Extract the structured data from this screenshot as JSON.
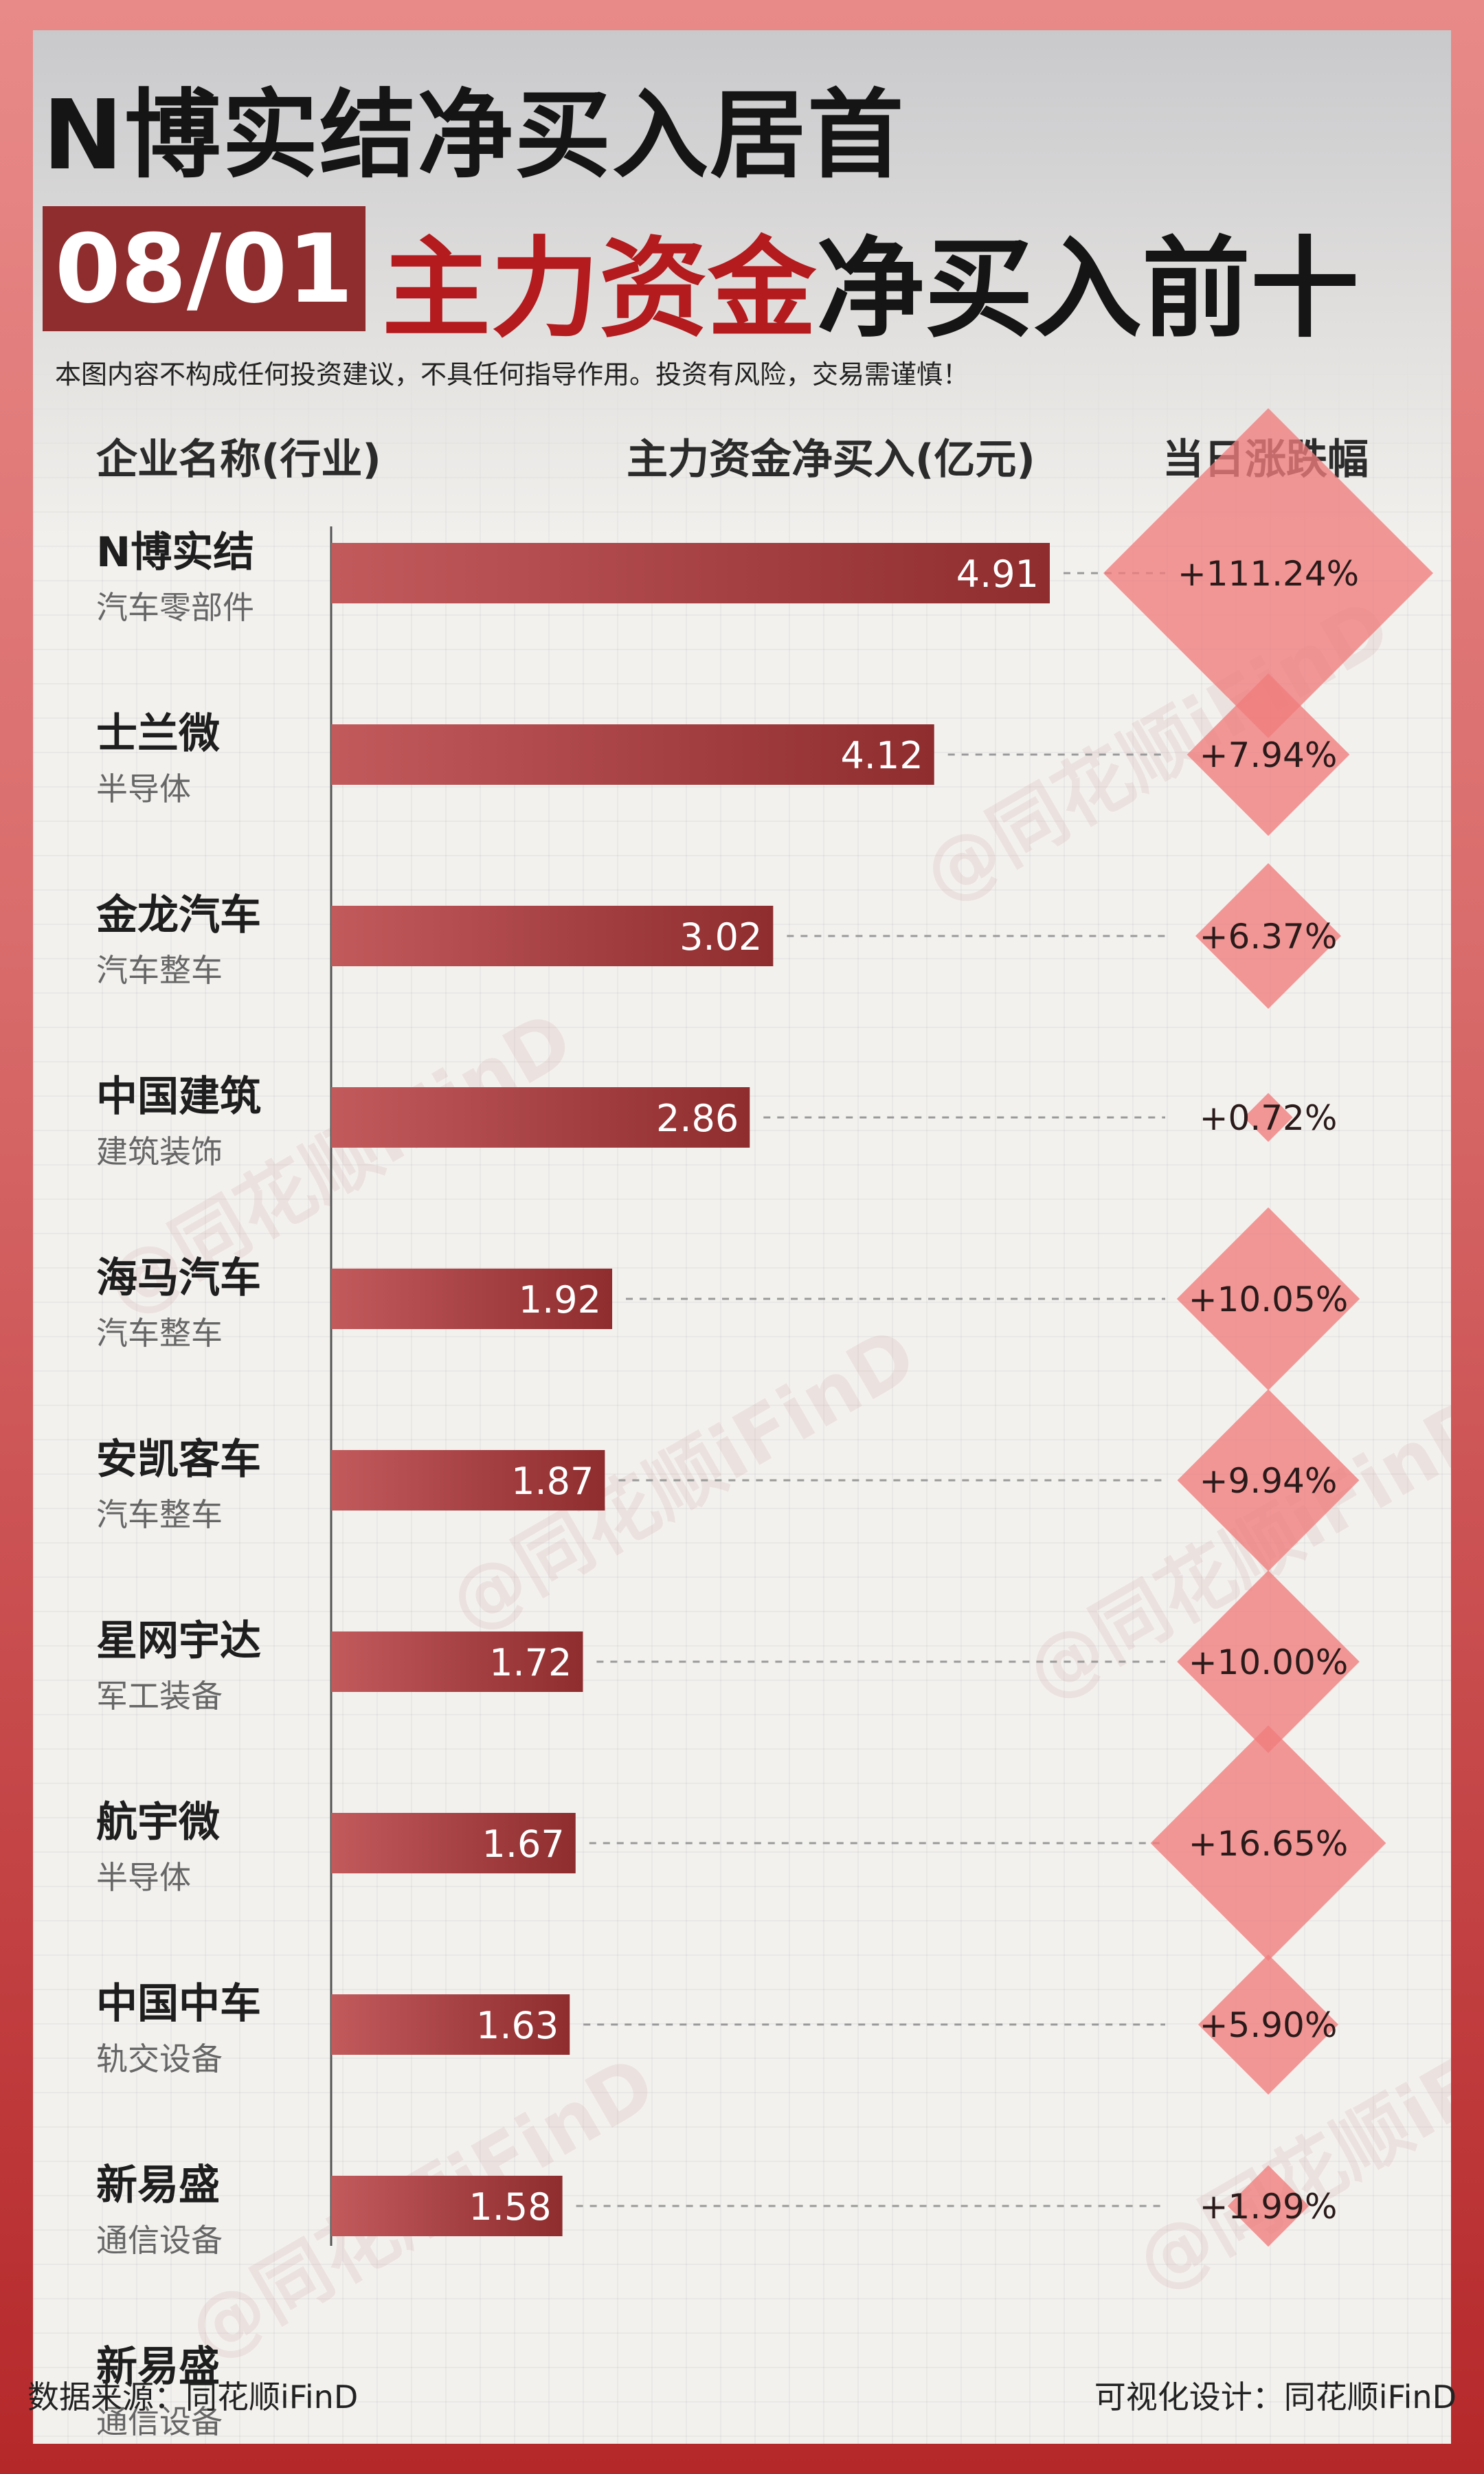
{
  "header": {
    "headline": "N博实结净买入居首",
    "date": "08/01",
    "title_red": "主力资金",
    "title_dark": "净买入前十",
    "disclaimer": "本图内容不构成任何投资建议，不具任何指导作用。投资有风险，交易需谨慎！"
  },
  "columns": {
    "company": "企业名称(行业)",
    "net_buy": "主力资金净买入(亿元)",
    "change": "当日涨跌幅"
  },
  "watermark": "@同花顺iFinD",
  "footer": {
    "source": "数据来源：同花顺iFinD",
    "design": "可视化设计：同花顺iFinD"
  },
  "colors": {
    "bar": "#8e2c2e",
    "diamond": "#ef7c7c",
    "frame": "#d86a6a"
  },
  "chart_data": {
    "type": "bar",
    "orientation": "horizontal",
    "categories": [
      "N博实结",
      "士兰微",
      "金龙汽车",
      "中国建筑",
      "海马汽车",
      "安凯客车",
      "星网宇达",
      "航宇微",
      "中国中车",
      "新易盛"
    ],
    "industries": [
      "汽车零部件",
      "半导体",
      "汽车整车",
      "建筑装饰",
      "汽车整车",
      "汽车整车",
      "军工装备",
      "半导体",
      "轨交设备",
      "通信设备"
    ],
    "series": [
      {
        "values": [
          4.91,
          4.12,
          3.02,
          2.86,
          1.92,
          1.87,
          1.72,
          1.67,
          1.63,
          1.58
        ]
      },
      {
        "values": [
          111.24,
          7.94,
          6.37,
          0.72,
          10.05,
          9.94,
          10.0,
          16.65,
          5.9,
          1.99
        ]
      }
    ],
    "value_labels": [
      "4.91",
      "4.12",
      "3.02",
      "2.86",
      "1.92",
      "1.87",
      "1.72",
      "1.67",
      "1.63",
      "1.58"
    ],
    "change_labels": [
      "+111.24%",
      "+7.94%",
      "+6.37%",
      "+0.72%",
      "+10.05%",
      "+9.94%",
      "+10.00%",
      "+16.65%",
      "+5.90%",
      "+1.99%"
    ],
    "trailing_row": {
      "name": "新易盛",
      "industry": "通信设备"
    }
  }
}
